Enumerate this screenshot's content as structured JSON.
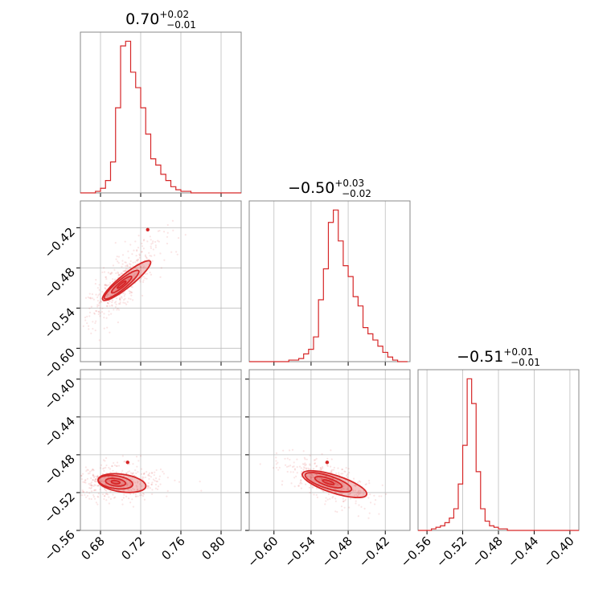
{
  "figure": {
    "background": "#ffffff",
    "accent_color": "#d62728",
    "grid": true,
    "panel_frame_color": "#888888"
  },
  "chart_data": [
    {
      "type": "histogram",
      "panel": "diag-1",
      "title": {
        "main": "0.70",
        "sup": "+0.02",
        "sub": "−0.01"
      },
      "xlim": [
        0.66,
        0.82
      ],
      "xticks": [
        0.68,
        0.72,
        0.76,
        0.8
      ],
      "xtick_labels": [
        "0.68",
        "0.72",
        "0.76",
        "0.80"
      ],
      "bins": [
        0.66,
        0.665,
        0.67,
        0.675,
        0.68,
        0.685,
        0.69,
        0.695,
        0.7,
        0.705,
        0.71,
        0.715,
        0.72,
        0.725,
        0.73,
        0.735,
        0.74,
        0.745,
        0.75,
        0.755,
        0.76,
        0.765,
        0.77,
        0.775,
        0.78,
        0.785,
        0.79,
        0.795,
        0.8,
        0.805,
        0.81,
        0.815,
        0.82
      ],
      "counts": [
        0,
        0,
        0,
        1,
        3,
        8,
        20,
        55,
        95,
        98,
        78,
        68,
        55,
        38,
        22,
        18,
        12,
        8,
        4,
        2,
        1,
        1,
        0,
        0,
        0,
        0,
        0,
        0,
        0,
        0,
        0,
        0
      ]
    },
    {
      "type": "histogram",
      "panel": "diag-2",
      "title": {
        "main": "−0.50",
        "sup": "+0.03",
        "sub": "−0.02"
      },
      "xlim": [
        -0.64,
        -0.38
      ],
      "xticks": [
        -0.6,
        -0.54,
        -0.48,
        -0.42
      ],
      "xtick_labels": [
        "−0.60",
        "−0.54",
        "−0.48",
        "−0.42"
      ],
      "bins": [
        -0.64,
        -0.632,
        -0.624,
        -0.616,
        -0.608,
        -0.6,
        -0.592,
        -0.584,
        -0.576,
        -0.568,
        -0.56,
        -0.552,
        -0.544,
        -0.536,
        -0.528,
        -0.52,
        -0.512,
        -0.504,
        -0.496,
        -0.488,
        -0.48,
        -0.472,
        -0.464,
        -0.456,
        -0.448,
        -0.44,
        -0.432,
        -0.424,
        -0.416,
        -0.408,
        -0.4,
        -0.392,
        -0.384
      ],
      "counts": [
        0,
        0,
        0,
        0,
        0,
        0,
        0,
        0,
        1,
        1,
        2,
        5,
        8,
        16,
        40,
        60,
        90,
        98,
        78,
        62,
        55,
        42,
        36,
        22,
        18,
        14,
        10,
        6,
        3,
        1,
        0,
        0
      ]
    },
    {
      "type": "histogram",
      "panel": "diag-3",
      "title": {
        "main": "−0.51",
        "sup": "+0.01",
        "sub": "−0.01"
      },
      "xlim": [
        -0.57,
        -0.39
      ],
      "xticks": [
        -0.56,
        -0.52,
        -0.48,
        -0.44,
        -0.4
      ],
      "xtick_labels": [
        "−0.56",
        "−0.52",
        "−0.48",
        "−0.44",
        "−0.40"
      ],
      "bins": [
        -0.57,
        -0.565,
        -0.56,
        -0.555,
        -0.55,
        -0.545,
        -0.54,
        -0.535,
        -0.53,
        -0.525,
        -0.52,
        -0.515,
        -0.51,
        -0.505,
        -0.5,
        -0.495,
        -0.49,
        -0.485,
        -0.48,
        -0.475,
        -0.47,
        -0.465,
        -0.46,
        -0.455,
        -0.45,
        -0.445,
        -0.44,
        -0.435,
        -0.43,
        -0.425,
        -0.42,
        -0.415,
        -0.41,
        -0.405,
        -0.4,
        -0.395,
        -0.39
      ],
      "counts": [
        0,
        0,
        0,
        1,
        2,
        3,
        5,
        8,
        14,
        30,
        55,
        98,
        82,
        38,
        14,
        6,
        3,
        2,
        1,
        1,
        0,
        0,
        0,
        0,
        0,
        0,
        0,
        0,
        0,
        0,
        0,
        0,
        0,
        0,
        0,
        0
      ]
    },
    {
      "type": "contour",
      "panel": "pair-2-1",
      "xlim": [
        0.66,
        0.82
      ],
      "ylim": [
        -0.62,
        -0.38
      ],
      "yticks": [
        -0.42,
        -0.48,
        -0.54,
        -0.6
      ],
      "ytick_labels": [
        "−0.42",
        "−0.48",
        "−0.54",
        "−0.60"
      ],
      "center": [
        0.701,
        -0.505
      ],
      "slope": 1.33,
      "peak_point": [
        0.727,
        -0.423
      ]
    },
    {
      "type": "contour",
      "panel": "pair-3-1",
      "xlim": [
        0.66,
        0.82
      ],
      "ylim": [
        -0.56,
        -0.39
      ],
      "xticks": [
        0.68,
        0.72,
        0.76,
        0.8
      ],
      "xtick_labels": [
        "0.68",
        "0.72",
        "0.76",
        "0.80"
      ],
      "yticks": [
        -0.4,
        -0.44,
        -0.48,
        -0.52,
        -0.56
      ],
      "ytick_labels": [
        "−0.40",
        "−0.44",
        "−0.48",
        "−0.52",
        "−0.56"
      ],
      "center": [
        0.695,
        -0.509
      ],
      "slope": 0.0,
      "peak_point": [
        0.707,
        -0.488
      ]
    },
    {
      "type": "contour",
      "panel": "pair-3-2",
      "xlim": [
        -0.64,
        -0.38
      ],
      "ylim": [
        -0.56,
        -0.39
      ],
      "xticks": [
        -0.6,
        -0.54,
        -0.48,
        -0.42
      ],
      "xtick_labels": [
        "−0.60",
        "−0.54",
        "−0.48",
        "−0.42"
      ],
      "center": [
        -0.512,
        -0.509
      ],
      "slope": -0.23,
      "peak_point": [
        -0.514,
        -0.488
      ]
    }
  ]
}
